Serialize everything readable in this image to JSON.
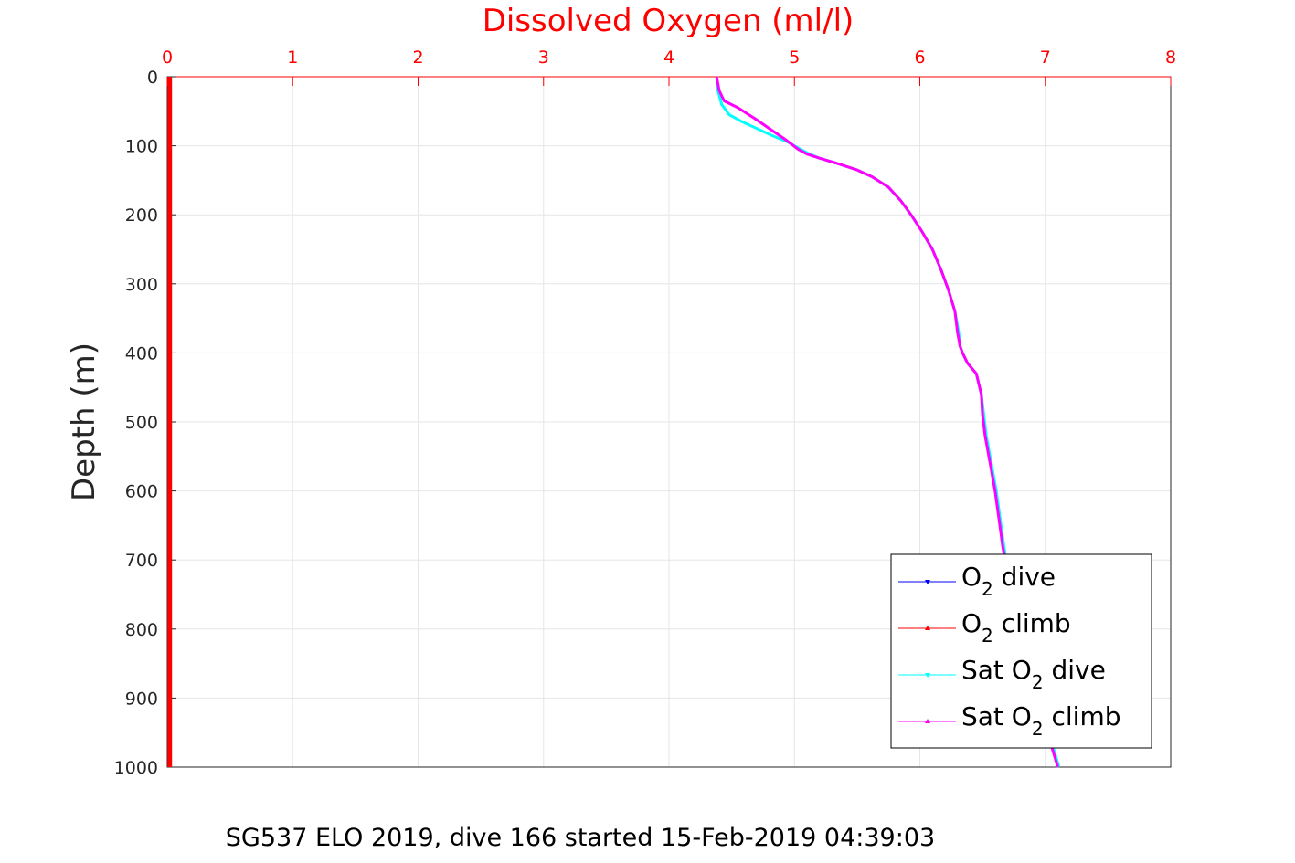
{
  "chart_data": {
    "type": "line",
    "title": "Dissolved Oxygen (ml/l)",
    "xlabel": "",
    "ylabel": "Depth (m)",
    "xlim": [
      0,
      8
    ],
    "ylim": [
      0,
      1000
    ],
    "y_reversed": true,
    "x_axis_location": "top",
    "x_ticks": [
      "0",
      "1",
      "2",
      "3",
      "4",
      "5",
      "6",
      "7",
      "8"
    ],
    "y_ticks": [
      "0",
      "100",
      "200",
      "300",
      "400",
      "500",
      "600",
      "700",
      "800",
      "900",
      "1000"
    ],
    "grid": true,
    "legend_location": "bottom-right",
    "caption": "SG537 ELO 2019, dive 166 started 15-Feb-2019 04:39:03",
    "series": [
      {
        "name_parts": [
          "O",
          "2",
          " dive"
        ],
        "color": "#0000ff",
        "marker": "triangle-down",
        "x": [
          0.02,
          0.02
        ],
        "y": [
          0,
          1000
        ]
      },
      {
        "name_parts": [
          "O",
          "2",
          " climb"
        ],
        "color": "#ff0000",
        "marker": "triangle-up",
        "x": [
          0.02,
          0.02
        ],
        "y": [
          0,
          1000
        ]
      },
      {
        "name_parts": [
          "Sat O",
          "2",
          " dive"
        ],
        "color": "#00ffff",
        "marker": "triangle-down",
        "x": [
          4.38,
          4.39,
          4.42,
          4.48,
          4.58,
          4.7,
          4.82,
          4.95,
          5.05,
          5.12,
          5.2,
          5.33,
          5.5,
          5.62,
          5.75,
          5.85,
          5.93,
          6.02,
          6.1,
          6.17,
          6.23,
          6.28,
          6.31,
          6.32,
          6.34,
          6.38,
          6.45,
          6.49,
          6.51,
          6.53,
          6.57,
          6.61,
          6.64,
          6.67,
          6.7,
          6.73,
          6.77,
          6.82,
          6.88,
          6.94,
          7.0,
          7.06,
          7.11
        ],
        "y": [
          0,
          20,
          40,
          55,
          65,
          75,
          85,
          95,
          105,
          112,
          118,
          125,
          135,
          145,
          160,
          180,
          200,
          225,
          250,
          280,
          310,
          340,
          370,
          390,
          400,
          415,
          430,
          460,
          490,
          520,
          560,
          600,
          640,
          680,
          710,
          740,
          770,
          810,
          850,
          890,
          930,
          970,
          1000
        ]
      },
      {
        "name_parts": [
          "Sat O",
          "2",
          " climb"
        ],
        "color": "#ff00ff",
        "marker": "triangle-up",
        "x": [
          4.38,
          4.4,
          4.44,
          4.55,
          4.68,
          4.8,
          4.92,
          5.03,
          5.1,
          5.2,
          5.33,
          5.5,
          5.62,
          5.75,
          5.85,
          5.93,
          6.02,
          6.1,
          6.17,
          6.23,
          6.28,
          6.3,
          6.32,
          6.34,
          6.38,
          6.45,
          6.49,
          6.5,
          6.52,
          6.56,
          6.6,
          6.63,
          6.66,
          6.69,
          6.72,
          6.76,
          6.81,
          6.87,
          6.93,
          6.99,
          7.05,
          7.1
        ],
        "y": [
          0,
          20,
          35,
          45,
          60,
          75,
          90,
          105,
          112,
          118,
          125,
          135,
          145,
          160,
          180,
          200,
          225,
          250,
          280,
          310,
          340,
          370,
          390,
          400,
          415,
          430,
          460,
          490,
          520,
          560,
          600,
          640,
          680,
          710,
          740,
          770,
          810,
          850,
          890,
          930,
          970,
          1000
        ]
      }
    ]
  }
}
